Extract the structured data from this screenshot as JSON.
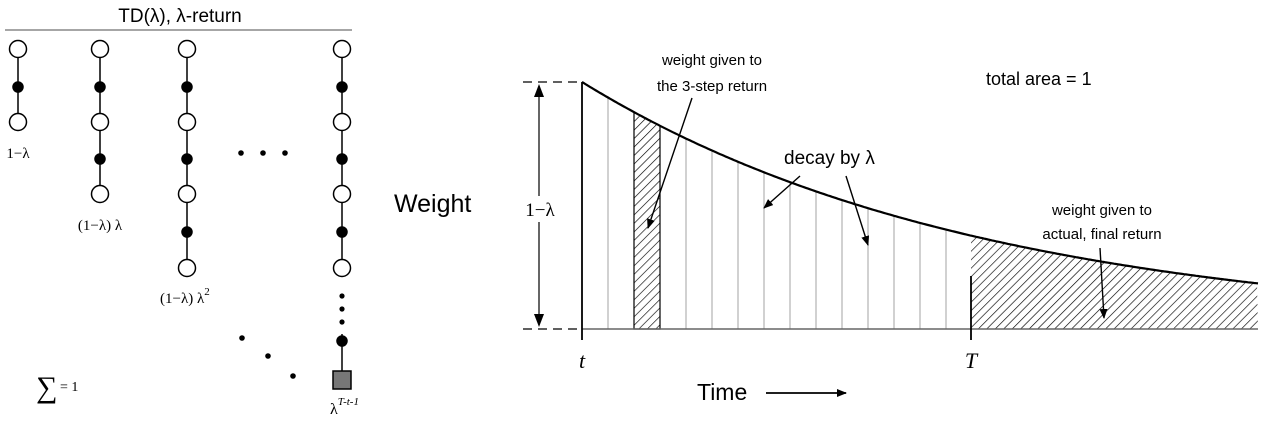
{
  "left_panel": {
    "title": "TD(λ), λ-return",
    "weight_labels": {
      "first": "1−λ",
      "second": "(1−λ) λ",
      "third_prefix": "(1−λ) λ",
      "third_exp": "2",
      "last_base": "λ",
      "last_exp": "T-t-1"
    },
    "sum_symbol": "∑",
    "sum_text": "= 1"
  },
  "right_panel": {
    "y_label": "Weight",
    "height_label": "1−λ",
    "x_label": "Time",
    "t_label": "t",
    "T_label": "T",
    "annotation_3step_line1": "weight given to",
    "annotation_3step_line2": "the 3-step return",
    "annotation_decay": "decay by λ",
    "annotation_total": "total area = 1",
    "annotation_final_line1": "weight given to",
    "annotation_final_line2": "actual, final return"
  }
}
